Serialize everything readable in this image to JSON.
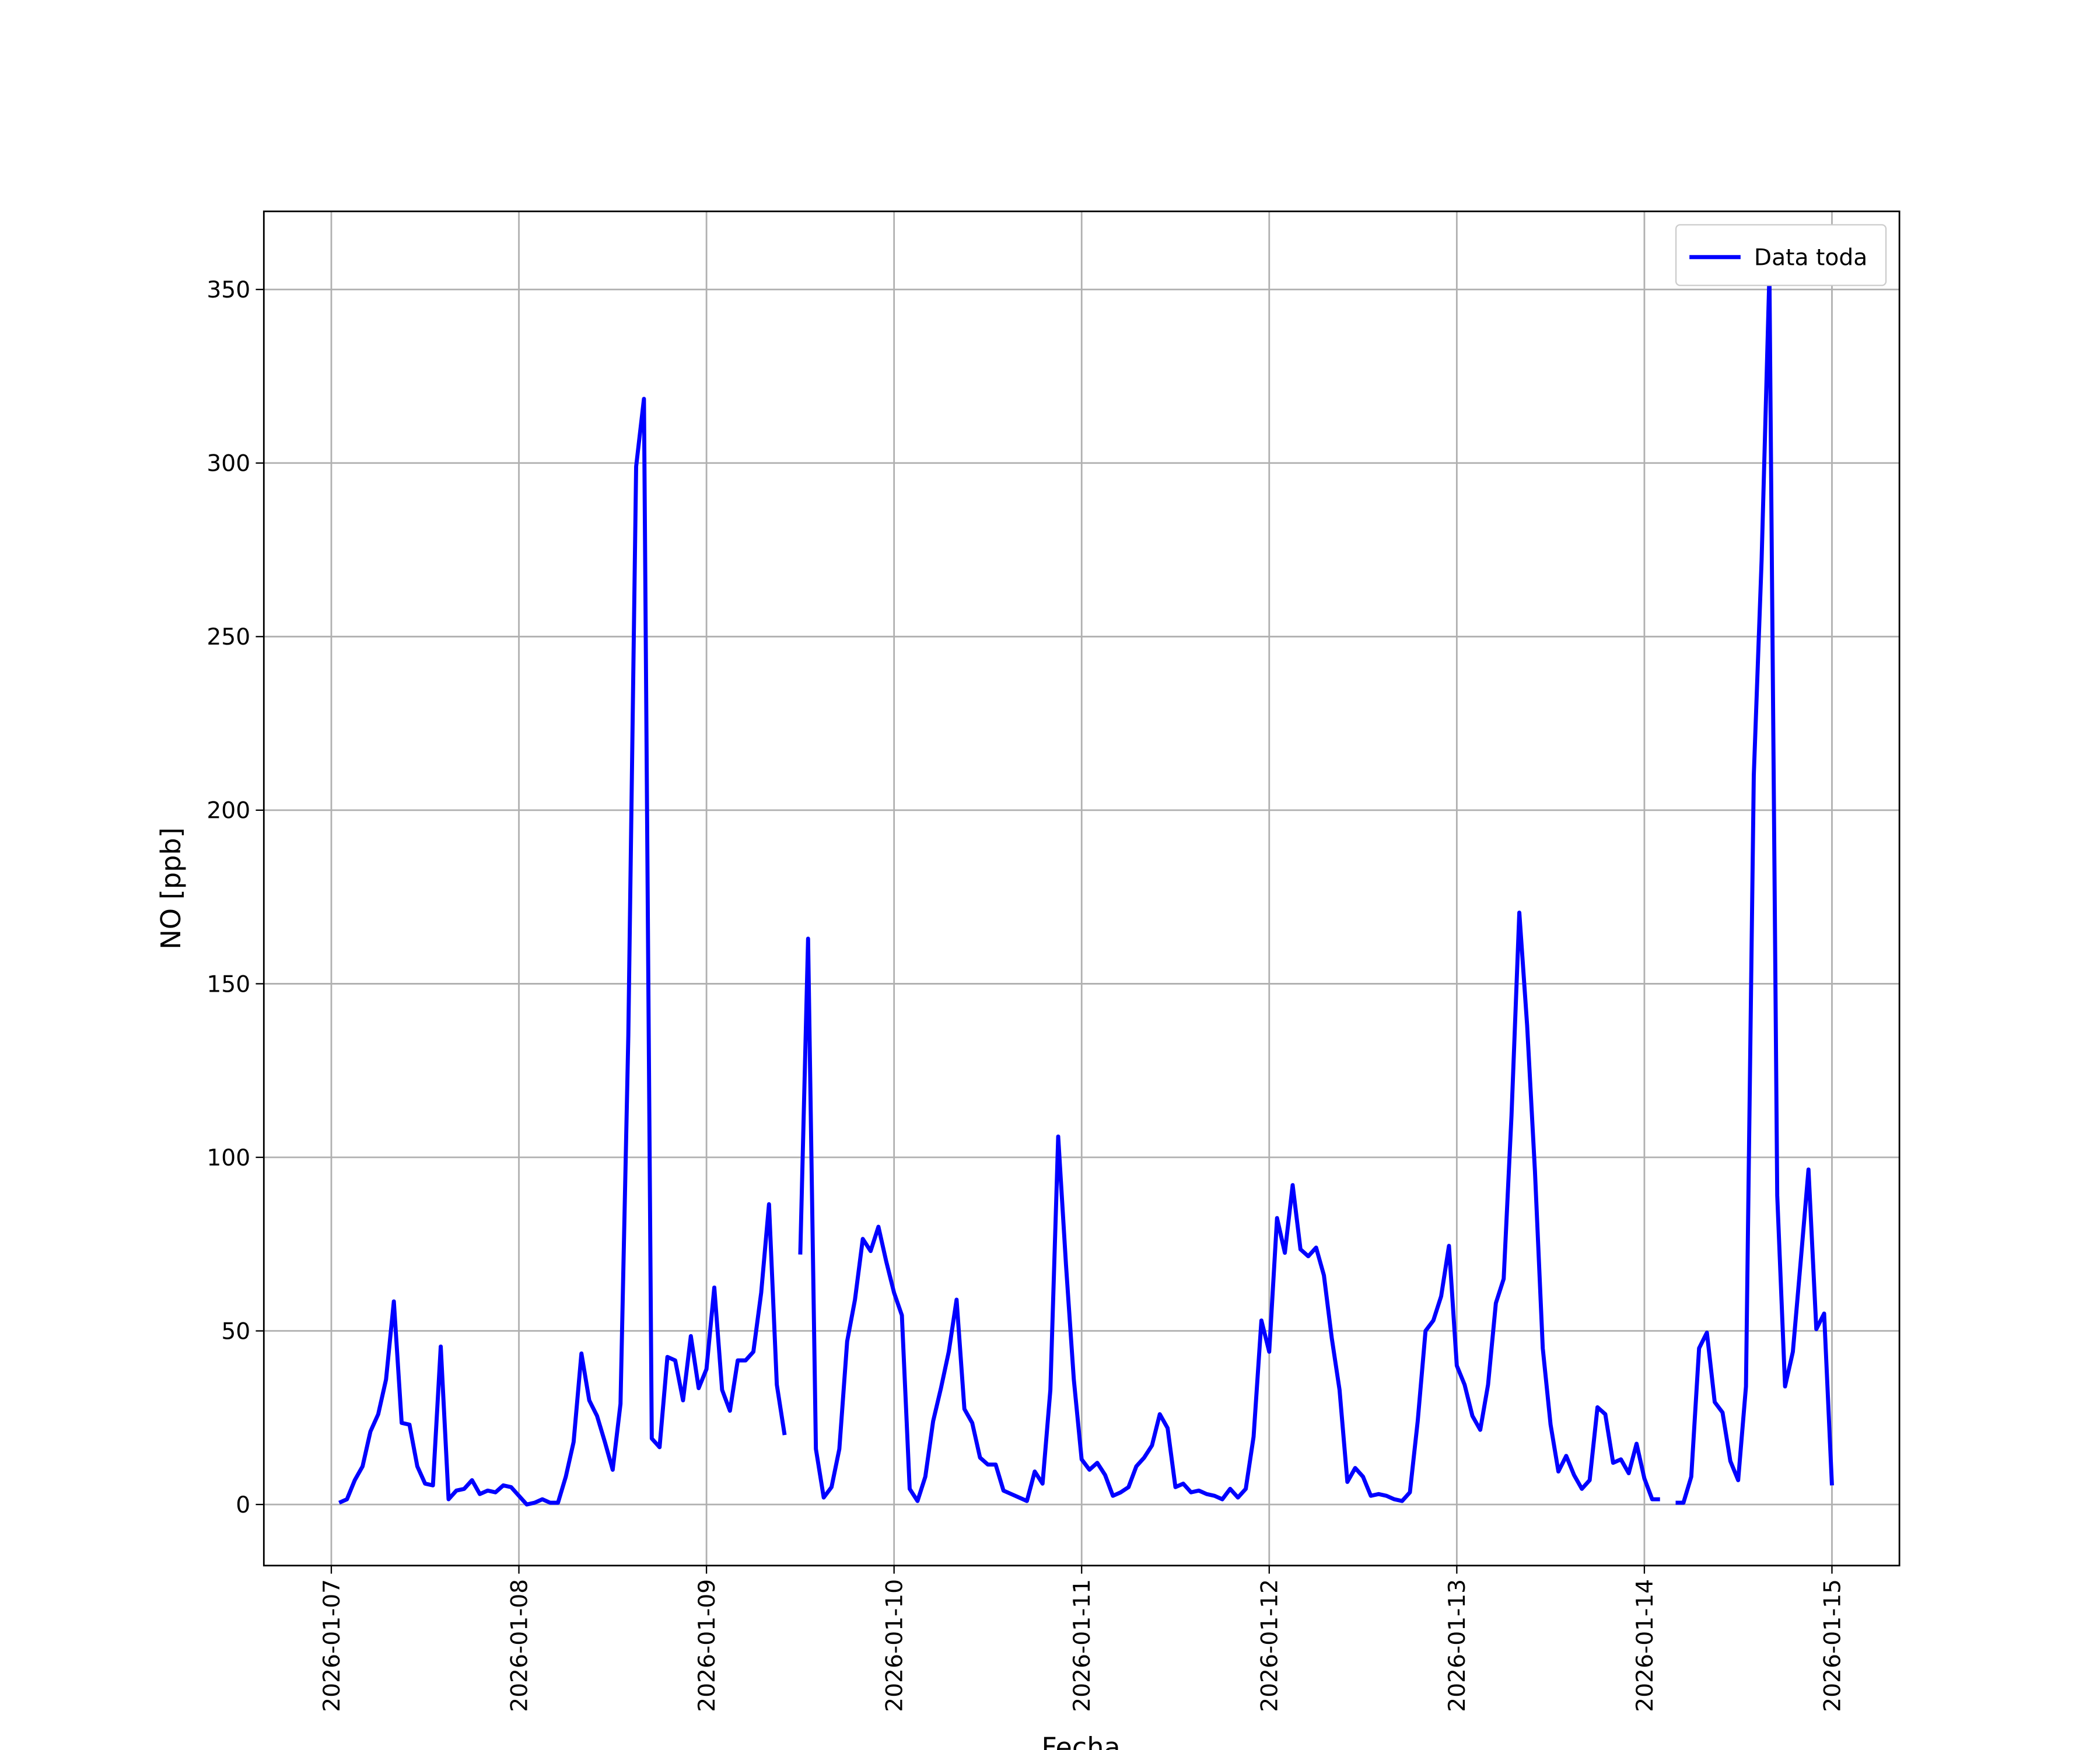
{
  "chart_data": {
    "type": "line",
    "xlabel": "Fecha",
    "ylabel": "NO [ppb]",
    "x": [
      "2026-01-07 01:00",
      "2026-01-07 02:00",
      "2026-01-07 03:00",
      "2026-01-07 04:00",
      "2026-01-07 05:00",
      "2026-01-07 06:00",
      "2026-01-07 07:00",
      "2026-01-07 08:00",
      "2026-01-07 09:00",
      "2026-01-07 10:00",
      "2026-01-07 11:00",
      "2026-01-07 12:00",
      "2026-01-07 13:00",
      "2026-01-07 14:00",
      "2026-01-07 15:00",
      "2026-01-07 16:00",
      "2026-01-07 17:00",
      "2026-01-07 18:00",
      "2026-01-07 19:00",
      "2026-01-07 20:00",
      "2026-01-07 21:00",
      "2026-01-07 22:00",
      "2026-01-07 23:00",
      "2026-01-08 00:00",
      "2026-01-08 01:00",
      "2026-01-08 02:00",
      "2026-01-08 03:00",
      "2026-01-08 04:00",
      "2026-01-08 05:00",
      "2026-01-08 06:00",
      "2026-01-08 07:00",
      "2026-01-08 08:00",
      "2026-01-08 09:00",
      "2026-01-08 10:00",
      "2026-01-08 11:00",
      "2026-01-08 12:00",
      "2026-01-08 13:00",
      "2026-01-08 14:00",
      "2026-01-08 15:00",
      "2026-01-08 16:00",
      "2026-01-08 17:00",
      "2026-01-08 18:00",
      "2026-01-08 19:00",
      "2026-01-08 20:00",
      "2026-01-08 21:00",
      "2026-01-08 22:00",
      "2026-01-08 23:00",
      "2026-01-09 00:00",
      "2026-01-09 01:00",
      "2026-01-09 02:00",
      "2026-01-09 03:00",
      "2026-01-09 04:00",
      "2026-01-09 05:00",
      "2026-01-09 06:00",
      "2026-01-09 07:00",
      "2026-01-09 08:00",
      "2026-01-09 09:00",
      "2026-01-09 10:00",
      "2026-01-09 11:00",
      "2026-01-09 12:00",
      "2026-01-09 13:00",
      "2026-01-09 14:00",
      "2026-01-09 15:00",
      "2026-01-09 16:00",
      "2026-01-09 17:00",
      "2026-01-09 18:00",
      "2026-01-09 19:00",
      "2026-01-09 20:00",
      "2026-01-09 21:00",
      "2026-01-09 22:00",
      "2026-01-09 23:00",
      "2026-01-10 00:00",
      "2026-01-10 01:00",
      "2026-01-10 02:00",
      "2026-01-10 03:00",
      "2026-01-10 04:00",
      "2026-01-10 05:00",
      "2026-01-10 06:00",
      "2026-01-10 07:00",
      "2026-01-10 08:00",
      "2026-01-10 09:00",
      "2026-01-10 10:00",
      "2026-01-10 11:00",
      "2026-01-10 12:00",
      "2026-01-10 13:00",
      "2026-01-10 14:00",
      "2026-01-10 15:00",
      "2026-01-10 16:00",
      "2026-01-10 17:00",
      "2026-01-10 18:00",
      "2026-01-10 19:00",
      "2026-01-10 20:00",
      "2026-01-10 21:00",
      "2026-01-10 22:00",
      "2026-01-10 23:00",
      "2026-01-11 00:00",
      "2026-01-11 01:00",
      "2026-01-11 02:00",
      "2026-01-11 03:00",
      "2026-01-11 04:00",
      "2026-01-11 05:00",
      "2026-01-11 06:00",
      "2026-01-11 07:00",
      "2026-01-11 08:00",
      "2026-01-11 09:00",
      "2026-01-11 10:00",
      "2026-01-11 11:00",
      "2026-01-11 12:00",
      "2026-01-11 13:00",
      "2026-01-11 14:00",
      "2026-01-11 15:00",
      "2026-01-11 16:00",
      "2026-01-11 17:00",
      "2026-01-11 18:00",
      "2026-01-11 19:00",
      "2026-01-11 20:00",
      "2026-01-11 21:00",
      "2026-01-11 22:00",
      "2026-01-11 23:00",
      "2026-01-12 00:00",
      "2026-01-12 01:00",
      "2026-01-12 02:00",
      "2026-01-12 03:00",
      "2026-01-12 04:00",
      "2026-01-12 05:00",
      "2026-01-12 06:00",
      "2026-01-12 07:00",
      "2026-01-12 08:00",
      "2026-01-12 09:00",
      "2026-01-12 10:00",
      "2026-01-12 11:00",
      "2026-01-12 12:00",
      "2026-01-12 13:00",
      "2026-01-12 14:00",
      "2026-01-12 15:00",
      "2026-01-12 16:00",
      "2026-01-12 17:00",
      "2026-01-12 18:00",
      "2026-01-12 19:00",
      "2026-01-12 20:00",
      "2026-01-12 21:00",
      "2026-01-12 22:00",
      "2026-01-12 23:00",
      "2026-01-13 00:00",
      "2026-01-13 01:00",
      "2026-01-13 02:00",
      "2026-01-13 03:00",
      "2026-01-13 04:00",
      "2026-01-13 05:00",
      "2026-01-13 06:00",
      "2026-01-13 07:00",
      "2026-01-13 08:00",
      "2026-01-13 09:00",
      "2026-01-13 10:00",
      "2026-01-13 11:00",
      "2026-01-13 12:00",
      "2026-01-13 13:00",
      "2026-01-13 14:00",
      "2026-01-13 15:00",
      "2026-01-13 16:00",
      "2026-01-13 17:00",
      "2026-01-13 18:00",
      "2026-01-13 19:00",
      "2026-01-13 20:00",
      "2026-01-13 21:00",
      "2026-01-13 22:00",
      "2026-01-13 23:00",
      "2026-01-14 00:00",
      "2026-01-14 01:00",
      "2026-01-14 02:00",
      "2026-01-14 03:00",
      "2026-01-14 04:00",
      "2026-01-14 05:00",
      "2026-01-14 06:00",
      "2026-01-14 07:00",
      "2026-01-14 08:00",
      "2026-01-14 09:00",
      "2026-01-14 10:00",
      "2026-01-14 11:00",
      "2026-01-14 12:00",
      "2026-01-14 13:00",
      "2026-01-14 14:00",
      "2026-01-14 15:00",
      "2026-01-14 16:00",
      "2026-01-14 17:00",
      "2026-01-14 18:00",
      "2026-01-14 19:00",
      "2026-01-14 20:00",
      "2026-01-14 21:00",
      "2026-01-14 22:00",
      "2026-01-14 23:00",
      "2026-01-15 00:00"
    ],
    "series": [
      {
        "name": "Data toda",
        "color": "#0000ff",
        "values": [
          0.5,
          1.5,
          7,
          11,
          21,
          26,
          36,
          58.5,
          23.5,
          23,
          11,
          6,
          5.5,
          45.5,
          1.5,
          4,
          4.5,
          7,
          3,
          4,
          3.5,
          5.5,
          5,
          2.5,
          0,
          0.5,
          1.5,
          0.5,
          0.5,
          8,
          18,
          43.5,
          30,
          25.5,
          18,
          10,
          29,
          135,
          299,
          318.5,
          19,
          16.5,
          42.5,
          41.5,
          30,
          48.5,
          33.5,
          39,
          62.5,
          33,
          27,
          41.5,
          41.5,
          44,
          61,
          86.5,
          34.5,
          20,
          null,
          72,
          163,
          16,
          2,
          5,
          16,
          47,
          59,
          76.5,
          73,
          80,
          70,
          61,
          54.5,
          4.5,
          1,
          8,
          24,
          33.5,
          44,
          59,
          27.5,
          23.5,
          13.5,
          11.5,
          11.5,
          4,
          3,
          2,
          1,
          9.5,
          6,
          33,
          106,
          69,
          36,
          13,
          10,
          12,
          8.5,
          2.5,
          3.5,
          5,
          11,
          13.5,
          17,
          26,
          22,
          5,
          6,
          3.5,
          4,
          3,
          2.5,
          1.5,
          4.5,
          2,
          4.5,
          19.5,
          53,
          44,
          82.5,
          72.5,
          92,
          73.5,
          71.5,
          74,
          66,
          48,
          33,
          6.5,
          10.5,
          8,
          2.5,
          3,
          2.5,
          1.5,
          1,
          3.5,
          24,
          50,
          53,
          60,
          74.5,
          40,
          34.5,
          25.5,
          21.5,
          34.5,
          58,
          65,
          112,
          170.5,
          138,
          96,
          45,
          23,
          9.5,
          14,
          8.5,
          4.5,
          7,
          28,
          26,
          12,
          13,
          9,
          17.5,
          7.5,
          1.5,
          1.5,
          null,
          0.5,
          0.5,
          8,
          45,
          49.5,
          29.5,
          26.5,
          12.5,
          7,
          34,
          210,
          272,
          354.5,
          89,
          34,
          44,
          70,
          96.5,
          50.5,
          55,
          5.5
        ]
      }
    ],
    "xlim": [
      "2026-01-06 15:22",
      "2026-01-15 08:38"
    ],
    "xticks": [
      "2026-01-07",
      "2026-01-08",
      "2026-01-09",
      "2026-01-10",
      "2026-01-11",
      "2026-01-12",
      "2026-01-13",
      "2026-01-14",
      "2026-01-15"
    ],
    "ylim": [
      -17.6,
      372.5
    ],
    "yticks": [
      0,
      50,
      100,
      150,
      200,
      250,
      300,
      350
    ],
    "grid": true,
    "legend": "upper right"
  }
}
